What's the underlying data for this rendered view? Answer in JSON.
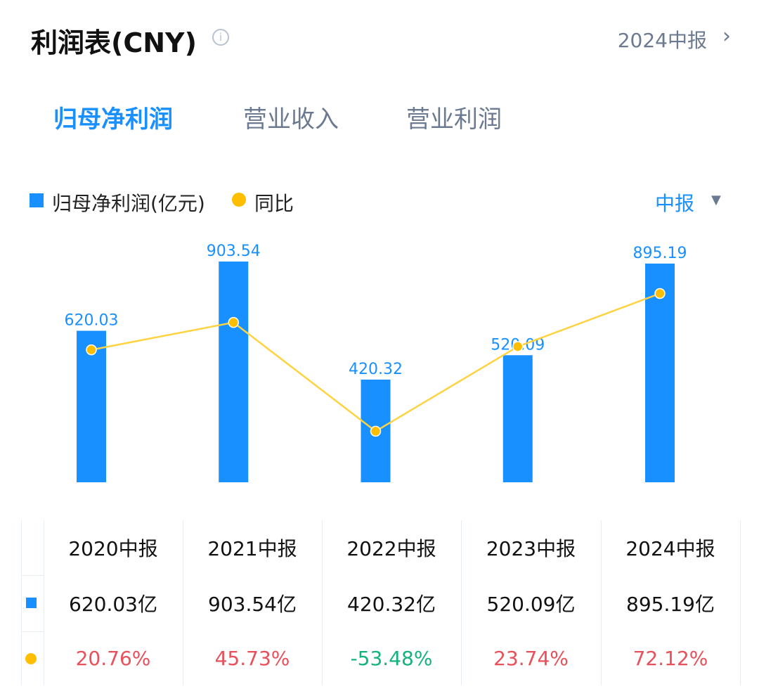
{
  "header": {
    "title": "利润表(CNY)",
    "info_icon": "info-icon",
    "period": "2024中报",
    "chevron_icon": "chevron-right-icon"
  },
  "tabs": [
    {
      "label": "归母净利润",
      "active": true
    },
    {
      "label": "营业收入",
      "active": false
    },
    {
      "label": "营业利润",
      "active": false
    }
  ],
  "legend": {
    "bar_label": "归母净利润(亿元)",
    "line_label": "同比",
    "period_select": "中报",
    "dropdown_icon": "caret-down-icon"
  },
  "colors": {
    "bar": "#1890ff",
    "line": "#ffd23f",
    "dot": "#ffbf00",
    "up": "#e8505b",
    "down": "#14b37d",
    "accent": "#1890ff"
  },
  "chart_data": {
    "type": "bar",
    "categories": [
      "2020中报",
      "2021中报",
      "2022中报",
      "2023中报",
      "2024中报"
    ],
    "series": [
      {
        "name": "归母净利润(亿元)",
        "type": "bar",
        "values": [
          620.03,
          903.54,
          420.32,
          520.09,
          895.19
        ],
        "labels": [
          "620.03",
          "903.54",
          "420.32",
          "520.09",
          "895.19"
        ]
      },
      {
        "name": "同比",
        "type": "line",
        "values": [
          20.76,
          45.73,
          -53.48,
          23.74,
          72.12
        ]
      }
    ],
    "grid": false,
    "legend": "top-left"
  },
  "table": {
    "headers": [
      "2020中报",
      "2021中报",
      "2022中报",
      "2023中报",
      "2024中报"
    ],
    "values": [
      "620.03亿",
      "903.54亿",
      "420.32亿",
      "520.09亿",
      "895.19亿"
    ],
    "yoy": [
      "20.76%",
      "45.73%",
      "-53.48%",
      "23.74%",
      "72.12%"
    ]
  }
}
